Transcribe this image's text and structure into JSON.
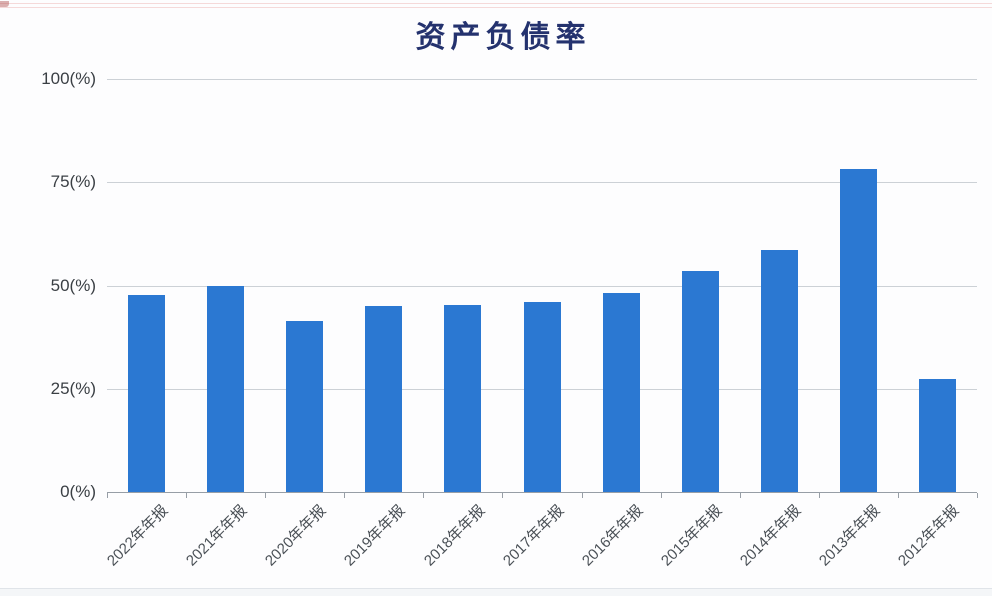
{
  "page": {
    "background_color": "#fdfdfe"
  },
  "chart_data": {
    "type": "bar",
    "title": "资产负债率",
    "categories": [
      "2022年年报",
      "2021年年报",
      "2020年年报",
      "2019年年报",
      "2018年年报",
      "2017年年报",
      "2016年年报",
      "2015年年报",
      "2014年年报",
      "2013年年报",
      "2012年年报"
    ],
    "values": [
      47.6,
      50.0,
      41.3,
      45.0,
      45.2,
      45.9,
      48.3,
      53.4,
      58.7,
      78.2,
      27.4
    ],
    "xlabel": "",
    "ylabel": "",
    "ylim": [
      0,
      100
    ],
    "ytick_values": [
      100,
      75,
      50,
      25,
      0
    ],
    "ytick_labels": [
      "100(%)",
      "75(%)",
      "50(%)",
      "25(%)",
      "0(%)"
    ],
    "grid": true,
    "legend_position": "none",
    "colors": {
      "bar": "#2b78d2",
      "title": "#24326e",
      "gridline": "#ccd1d6",
      "axis": "#979ea6",
      "ytick_label": "#3a3f44",
      "xtick_label": "#4a5056"
    }
  }
}
